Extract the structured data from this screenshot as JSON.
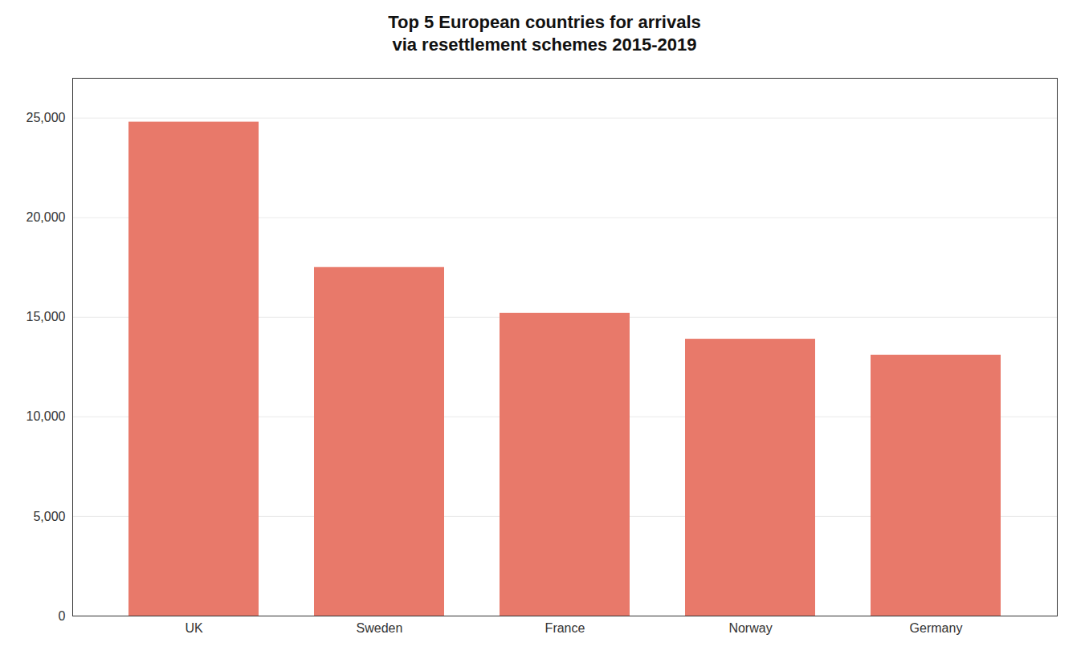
{
  "chart_data": {
    "type": "bar",
    "title": "Top 5 European countries for arrivals\nvia resettlement schemes 2015-2019",
    "categories": [
      "UK",
      "Sweden",
      "France",
      "Norway",
      "Germany"
    ],
    "values": [
      24800,
      17500,
      15200,
      13900,
      13100
    ],
    "color": "#E8796A",
    "ylim": [
      0,
      27000
    ],
    "yticks": [
      0,
      {
        "value": 5000,
        "label": "5,000"
      },
      {
        "value": 10000,
        "label": "10,000"
      },
      {
        "value": 15000,
        "label": "15,000"
      },
      {
        "value": 20000,
        "label": "20,000"
      },
      {
        "value": 25000,
        "label": "25,000"
      }
    ],
    "grid": true
  }
}
